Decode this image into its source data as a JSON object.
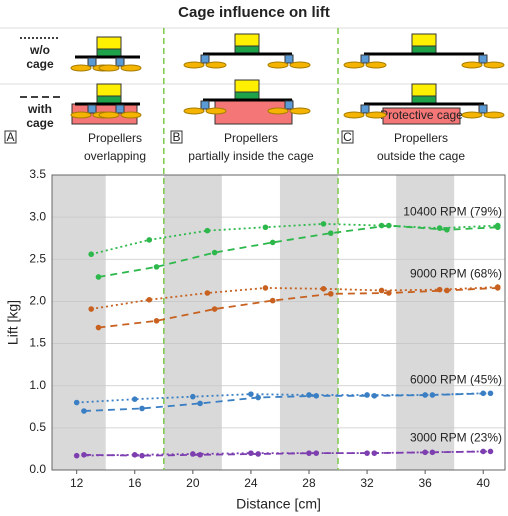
{
  "chart_data": {
    "type": "line",
    "title": "Cage influence on lift",
    "diagram": {
      "legend": [
        {
          "style": "dotted",
          "lines": [
            "w/o",
            "cage"
          ]
        },
        {
          "style": "dashed",
          "lines": [
            "with",
            "cage"
          ]
        }
      ],
      "panels": [
        {
          "letter": "A",
          "caption": [
            "Propellers",
            "overlapping"
          ]
        },
        {
          "letter": "B",
          "caption": [
            "Propellers",
            "partially inside the cage"
          ]
        },
        {
          "letter": "C",
          "caption": [
            "Propellers",
            "outside the cage"
          ]
        }
      ],
      "cage_label": "Protective cage"
    },
    "x_label": "Distance [cm]",
    "y_label": "Lift [kg]",
    "xlim": [
      10.3,
      41.5
    ],
    "ylim": [
      0,
      3.5
    ],
    "xticks": [
      12,
      16,
      20,
      24,
      28,
      32,
      36,
      40
    ],
    "yticks": [
      {
        "value": 0,
        "label": "0.0"
      },
      0.5,
      {
        "value": 1,
        "label": "1.0"
      },
      1.5,
      {
        "value": 2,
        "label": "2.0"
      },
      2.5,
      {
        "value": 3,
        "label": "3.0"
      },
      3.5
    ],
    "grid": true,
    "shaded_bands": [
      [
        10.3,
        14
      ],
      [
        18,
        22
      ],
      [
        26,
        30
      ],
      [
        34,
        38
      ]
    ],
    "region_boundaries": [
      18,
      30
    ],
    "series": [
      {
        "name": "10400 RPM (79%)",
        "color": "#2db84b",
        "without_cage": {
          "x": [
            13,
            17,
            21,
            25,
            29,
            33,
            37,
            41
          ],
          "values": [
            2.56,
            2.73,
            2.84,
            2.88,
            2.92,
            2.9,
            2.87,
            2.9
          ]
        },
        "with_cage": {
          "x": [
            13.5,
            17.5,
            21.5,
            25.5,
            29.5,
            33.5,
            37.5,
            41
          ],
          "values": [
            2.29,
            2.41,
            2.58,
            2.7,
            2.81,
            2.9,
            2.85,
            2.88
          ]
        }
      },
      {
        "name": "9000 RPM (68%)",
        "color": "#c8611f",
        "without_cage": {
          "x": [
            13,
            17,
            21,
            25,
            29,
            33,
            37,
            41
          ],
          "values": [
            1.91,
            2.02,
            2.1,
            2.16,
            2.15,
            2.13,
            2.14,
            2.17
          ]
        },
        "with_cage": {
          "x": [
            13.5,
            17.5,
            21.5,
            25.5,
            29.5,
            33.5,
            37.5,
            41
          ],
          "values": [
            1.69,
            1.77,
            1.91,
            2.01,
            2.09,
            2.1,
            2.13,
            2.16
          ]
        }
      },
      {
        "name": "6000 RPM (45%)",
        "color": "#3a7fc4",
        "without_cage": {
          "x": [
            12,
            16,
            20,
            24,
            28,
            32,
            36,
            40
          ],
          "values": [
            0.8,
            0.84,
            0.87,
            0.9,
            0.89,
            0.89,
            0.89,
            0.91
          ]
        },
        "with_cage": {
          "x": [
            12.5,
            16.5,
            20.5,
            24.5,
            28.5,
            32.5,
            36.5,
            40.5
          ],
          "values": [
            0.7,
            0.73,
            0.79,
            0.86,
            0.88,
            0.88,
            0.89,
            0.91
          ]
        }
      },
      {
        "name": "3000 RPM (23%)",
        "color": "#7d3fb0",
        "without_cage": {
          "x": [
            12,
            16,
            20,
            24,
            28,
            32,
            36,
            40
          ],
          "values": [
            0.17,
            0.18,
            0.19,
            0.2,
            0.2,
            0.2,
            0.21,
            0.22
          ]
        },
        "with_cage": {
          "x": [
            12.5,
            16.5,
            20.5,
            24.5,
            28.5,
            32.5,
            36.5,
            40.5
          ],
          "values": [
            0.18,
            0.17,
            0.18,
            0.19,
            0.2,
            0.2,
            0.21,
            0.22
          ]
        }
      }
    ]
  }
}
